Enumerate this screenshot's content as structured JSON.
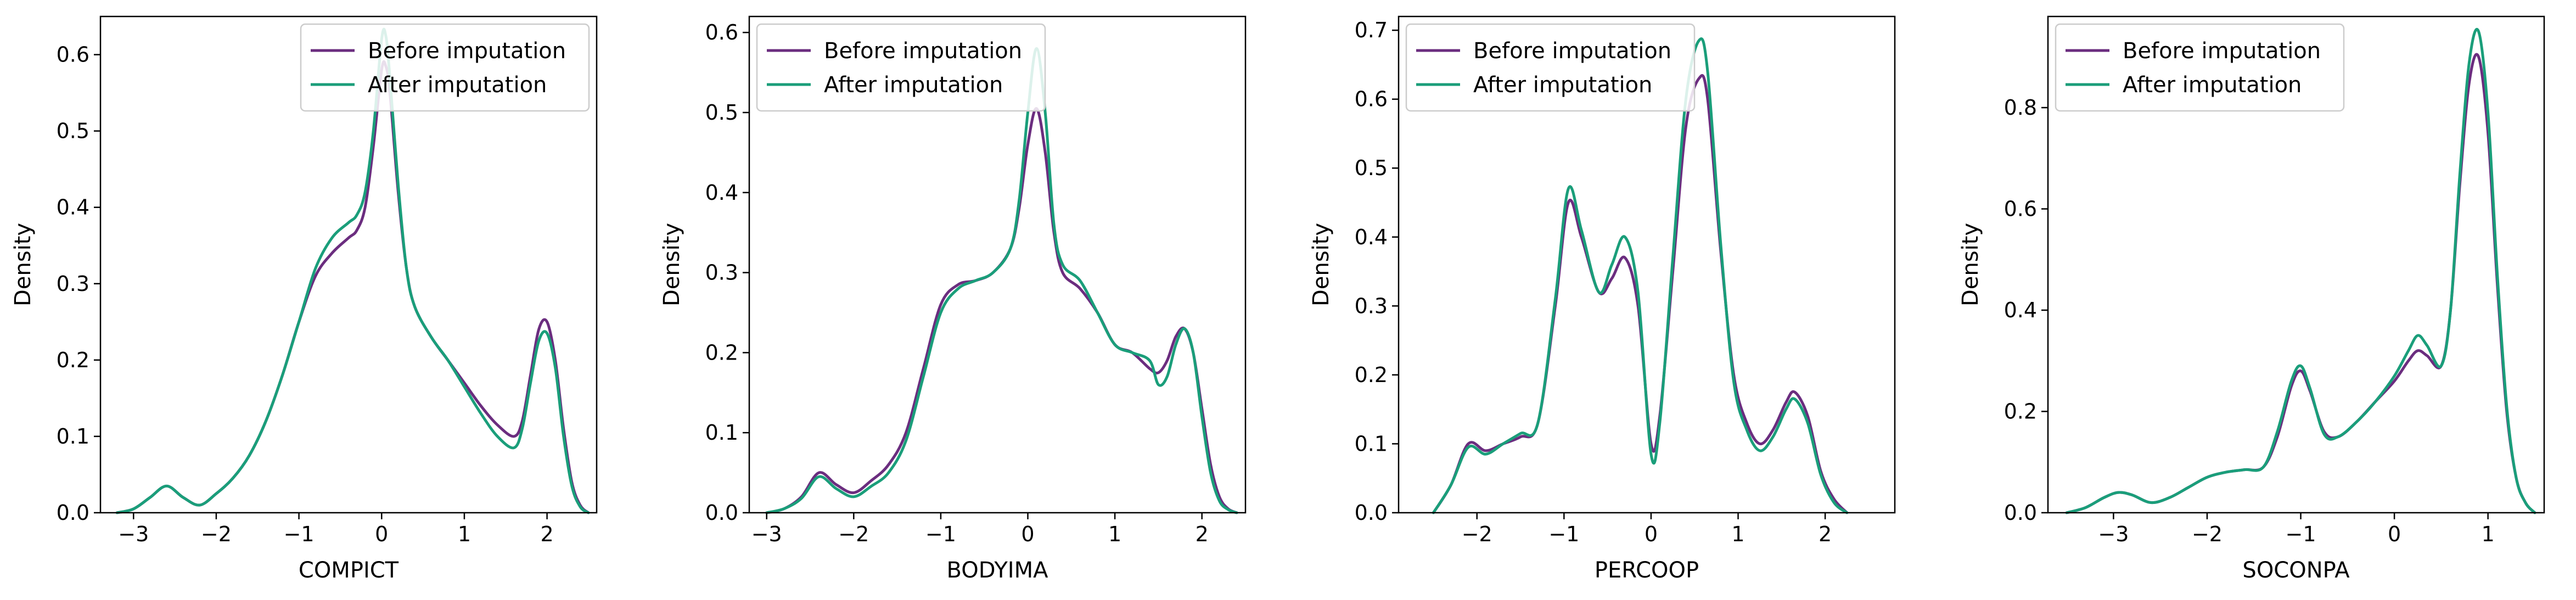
{
  "legend": {
    "before_label": "Before imputation",
    "after_label": "After imputation",
    "before_color": "#6b2d7f",
    "after_color": "#1a9e7a",
    "placement": "upper-right / upper-left"
  },
  "chart_data": [
    {
      "type": "line",
      "xlabel": "COMPICT",
      "ylabel": "Density",
      "xlim": [
        -3.4,
        2.6
      ],
      "ylim": [
        0,
        0.65
      ],
      "xticks": [
        -3,
        -2,
        -1,
        0,
        1,
        2
      ],
      "xtick_labels": [
        "−3",
        "−2",
        "−1",
        "0",
        "1",
        "2"
      ],
      "yticks": [
        0.0,
        0.1,
        0.2,
        0.3,
        0.4,
        0.5,
        0.6
      ],
      "ytick_labels": [
        "0.0",
        "0.1",
        "0.2",
        "0.3",
        "0.4",
        "0.5",
        "0.6"
      ],
      "legend_position": "upper-right",
      "series": [
        {
          "name": "Before imputation",
          "x": [
            -3.2,
            -3.0,
            -2.8,
            -2.6,
            -2.4,
            -2.2,
            -2.0,
            -1.8,
            -1.6,
            -1.4,
            -1.2,
            -1.0,
            -0.8,
            -0.6,
            -0.4,
            -0.3,
            -0.2,
            -0.1,
            0.0,
            0.05,
            0.1,
            0.2,
            0.3,
            0.4,
            0.6,
            0.8,
            1.0,
            1.2,
            1.4,
            1.6,
            1.7,
            1.8,
            1.9,
            2.0,
            2.1,
            2.2,
            2.3,
            2.4,
            2.5
          ],
          "y": [
            0.0,
            0.005,
            0.02,
            0.035,
            0.02,
            0.01,
            0.025,
            0.045,
            0.075,
            0.12,
            0.18,
            0.25,
            0.31,
            0.34,
            0.36,
            0.37,
            0.4,
            0.48,
            0.58,
            0.585,
            0.55,
            0.42,
            0.32,
            0.27,
            0.23,
            0.2,
            0.17,
            0.14,
            0.115,
            0.1,
            0.12,
            0.18,
            0.24,
            0.25,
            0.2,
            0.11,
            0.04,
            0.01,
            0.0
          ]
        },
        {
          "name": "After imputation",
          "x": [
            -3.2,
            -3.0,
            -2.8,
            -2.6,
            -2.4,
            -2.2,
            -2.0,
            -1.8,
            -1.6,
            -1.4,
            -1.2,
            -1.0,
            -0.8,
            -0.6,
            -0.4,
            -0.3,
            -0.2,
            -0.1,
            0.0,
            0.05,
            0.1,
            0.2,
            0.3,
            0.4,
            0.6,
            0.8,
            1.0,
            1.2,
            1.4,
            1.6,
            1.7,
            1.8,
            1.9,
            2.0,
            2.1,
            2.2,
            2.3,
            2.4,
            2.5
          ],
          "y": [
            0.0,
            0.005,
            0.02,
            0.035,
            0.02,
            0.01,
            0.025,
            0.045,
            0.075,
            0.12,
            0.18,
            0.25,
            0.32,
            0.36,
            0.38,
            0.39,
            0.42,
            0.5,
            0.62,
            0.625,
            0.57,
            0.43,
            0.32,
            0.27,
            0.23,
            0.2,
            0.165,
            0.13,
            0.1,
            0.085,
            0.11,
            0.17,
            0.225,
            0.235,
            0.19,
            0.1,
            0.035,
            0.008,
            0.0
          ]
        }
      ]
    },
    {
      "type": "line",
      "xlabel": "BODYIMA",
      "ylabel": "Density",
      "xlim": [
        -3.2,
        2.5
      ],
      "ylim": [
        0,
        0.62
      ],
      "xticks": [
        -3,
        -2,
        -1,
        0,
        1,
        2
      ],
      "xtick_labels": [
        "−3",
        "−2",
        "−1",
        "0",
        "1",
        "2"
      ],
      "yticks": [
        0.0,
        0.1,
        0.2,
        0.3,
        0.4,
        0.5,
        0.6
      ],
      "ytick_labels": [
        "0.0",
        "0.1",
        "0.2",
        "0.3",
        "0.4",
        "0.5",
        "0.6"
      ],
      "legend_position": "upper-left",
      "series": [
        {
          "name": "Before imputation",
          "x": [
            -3.0,
            -2.8,
            -2.6,
            -2.4,
            -2.2,
            -2.0,
            -1.8,
            -1.6,
            -1.4,
            -1.2,
            -1.0,
            -0.8,
            -0.6,
            -0.4,
            -0.2,
            -0.1,
            0.0,
            0.1,
            0.2,
            0.3,
            0.4,
            0.6,
            0.8,
            1.0,
            1.2,
            1.4,
            1.5,
            1.6,
            1.7,
            1.8,
            1.9,
            2.0,
            2.1,
            2.2,
            2.3,
            2.4
          ],
          "y": [
            0.0,
            0.005,
            0.02,
            0.05,
            0.035,
            0.025,
            0.04,
            0.06,
            0.1,
            0.18,
            0.26,
            0.285,
            0.29,
            0.3,
            0.33,
            0.38,
            0.46,
            0.505,
            0.45,
            0.35,
            0.3,
            0.28,
            0.25,
            0.21,
            0.2,
            0.18,
            0.175,
            0.19,
            0.22,
            0.23,
            0.2,
            0.13,
            0.06,
            0.02,
            0.005,
            0.0
          ]
        },
        {
          "name": "After imputation",
          "x": [
            -3.0,
            -2.8,
            -2.6,
            -2.4,
            -2.2,
            -2.0,
            -1.8,
            -1.6,
            -1.4,
            -1.2,
            -1.0,
            -0.8,
            -0.6,
            -0.4,
            -0.2,
            -0.1,
            0.0,
            0.1,
            0.2,
            0.3,
            0.4,
            0.6,
            0.8,
            1.0,
            1.2,
            1.4,
            1.5,
            1.6,
            1.7,
            1.8,
            1.9,
            2.0,
            2.1,
            2.2,
            2.3,
            2.4
          ],
          "y": [
            0.0,
            0.005,
            0.018,
            0.045,
            0.03,
            0.02,
            0.033,
            0.05,
            0.09,
            0.17,
            0.25,
            0.28,
            0.29,
            0.3,
            0.33,
            0.39,
            0.5,
            0.58,
            0.5,
            0.36,
            0.31,
            0.29,
            0.25,
            0.21,
            0.2,
            0.19,
            0.16,
            0.17,
            0.21,
            0.23,
            0.2,
            0.12,
            0.05,
            0.015,
            0.004,
            0.0
          ]
        }
      ]
    },
    {
      "type": "line",
      "xlabel": "PERCOOP",
      "ylabel": "Density",
      "xlim": [
        -2.9,
        2.8
      ],
      "ylim": [
        0,
        0.72
      ],
      "xticks": [
        -2,
        -1,
        0,
        1,
        2
      ],
      "xtick_labels": [
        "−2",
        "−1",
        "0",
        "1",
        "2"
      ],
      "yticks": [
        0.0,
        0.1,
        0.2,
        0.3,
        0.4,
        0.5,
        0.6,
        0.7
      ],
      "ytick_labels": [
        "0.0",
        "0.1",
        "0.2",
        "0.3",
        "0.4",
        "0.5",
        "0.6",
        "0.7"
      ],
      "legend_position": "upper-left",
      "series": [
        {
          "name": "Before imputation",
          "x": [
            -2.5,
            -2.3,
            -2.1,
            -1.9,
            -1.7,
            -1.5,
            -1.3,
            -1.1,
            -0.95,
            -0.8,
            -0.6,
            -0.45,
            -0.3,
            -0.15,
            0.0,
            0.1,
            0.25,
            0.4,
            0.55,
            0.65,
            0.8,
            0.95,
            1.1,
            1.25,
            1.4,
            1.55,
            1.65,
            1.8,
            1.95,
            2.1,
            2.25
          ],
          "y": [
            0.0,
            0.04,
            0.1,
            0.09,
            0.1,
            0.11,
            0.13,
            0.3,
            0.45,
            0.4,
            0.32,
            0.34,
            0.37,
            0.3,
            0.1,
            0.14,
            0.35,
            0.56,
            0.63,
            0.6,
            0.38,
            0.2,
            0.13,
            0.1,
            0.12,
            0.16,
            0.175,
            0.14,
            0.06,
            0.02,
            0.0
          ]
        },
        {
          "name": "After imputation",
          "x": [
            -2.5,
            -2.3,
            -2.1,
            -1.9,
            -1.7,
            -1.5,
            -1.3,
            -1.1,
            -0.95,
            -0.8,
            -0.6,
            -0.45,
            -0.3,
            -0.15,
            0.0,
            0.1,
            0.25,
            0.4,
            0.55,
            0.65,
            0.8,
            0.95,
            1.1,
            1.25,
            1.4,
            1.55,
            1.65,
            1.8,
            1.95,
            2.1,
            2.25
          ],
          "y": [
            0.0,
            0.04,
            0.095,
            0.085,
            0.1,
            0.115,
            0.13,
            0.31,
            0.47,
            0.41,
            0.32,
            0.36,
            0.4,
            0.32,
            0.085,
            0.13,
            0.37,
            0.6,
            0.685,
            0.64,
            0.39,
            0.19,
            0.12,
            0.09,
            0.11,
            0.15,
            0.165,
            0.13,
            0.055,
            0.015,
            0.0
          ]
        }
      ]
    },
    {
      "type": "line",
      "xlabel": "SOCONPA",
      "ylabel": "Density",
      "xlim": [
        -3.7,
        1.6
      ],
      "ylim": [
        0,
        0.98
      ],
      "xticks": [
        -3,
        -2,
        -1,
        0,
        1
      ],
      "xtick_labels": [
        "−3",
        "−2",
        "−1",
        "0",
        "1"
      ],
      "yticks": [
        0.0,
        0.2,
        0.4,
        0.6,
        0.8
      ],
      "ytick_labels": [
        "0.0",
        "0.2",
        "0.4",
        "0.6",
        "0.8"
      ],
      "legend_position": "upper-left",
      "series": [
        {
          "name": "Before imputation",
          "x": [
            -3.5,
            -3.3,
            -3.1,
            -2.95,
            -2.8,
            -2.6,
            -2.4,
            -2.2,
            -2.0,
            -1.8,
            -1.6,
            -1.4,
            -1.25,
            -1.1,
            -1.0,
            -0.9,
            -0.75,
            -0.6,
            -0.4,
            -0.2,
            0.0,
            0.15,
            0.25,
            0.35,
            0.5,
            0.6,
            0.7,
            0.8,
            0.9,
            1.0,
            1.1,
            1.2,
            1.3,
            1.4,
            1.5
          ],
          "y": [
            0.0,
            0.01,
            0.03,
            0.04,
            0.035,
            0.02,
            0.03,
            0.05,
            0.07,
            0.08,
            0.085,
            0.09,
            0.15,
            0.25,
            0.28,
            0.24,
            0.16,
            0.15,
            0.18,
            0.22,
            0.26,
            0.3,
            0.32,
            0.31,
            0.29,
            0.4,
            0.65,
            0.85,
            0.9,
            0.75,
            0.45,
            0.2,
            0.07,
            0.02,
            0.0
          ]
        },
        {
          "name": "After imputation",
          "x": [
            -3.5,
            -3.3,
            -3.1,
            -2.95,
            -2.8,
            -2.6,
            -2.4,
            -2.2,
            -2.0,
            -1.8,
            -1.6,
            -1.4,
            -1.25,
            -1.1,
            -1.0,
            -0.9,
            -0.75,
            -0.6,
            -0.4,
            -0.2,
            0.0,
            0.15,
            0.25,
            0.35,
            0.5,
            0.6,
            0.7,
            0.8,
            0.9,
            1.0,
            1.1,
            1.2,
            1.3,
            1.4,
            1.5
          ],
          "y": [
            0.0,
            0.01,
            0.03,
            0.04,
            0.035,
            0.02,
            0.03,
            0.05,
            0.07,
            0.08,
            0.085,
            0.09,
            0.16,
            0.26,
            0.29,
            0.245,
            0.155,
            0.15,
            0.18,
            0.22,
            0.27,
            0.32,
            0.35,
            0.33,
            0.29,
            0.4,
            0.67,
            0.89,
            0.95,
            0.79,
            0.47,
            0.21,
            0.07,
            0.02,
            0.0
          ]
        }
      ]
    }
  ]
}
